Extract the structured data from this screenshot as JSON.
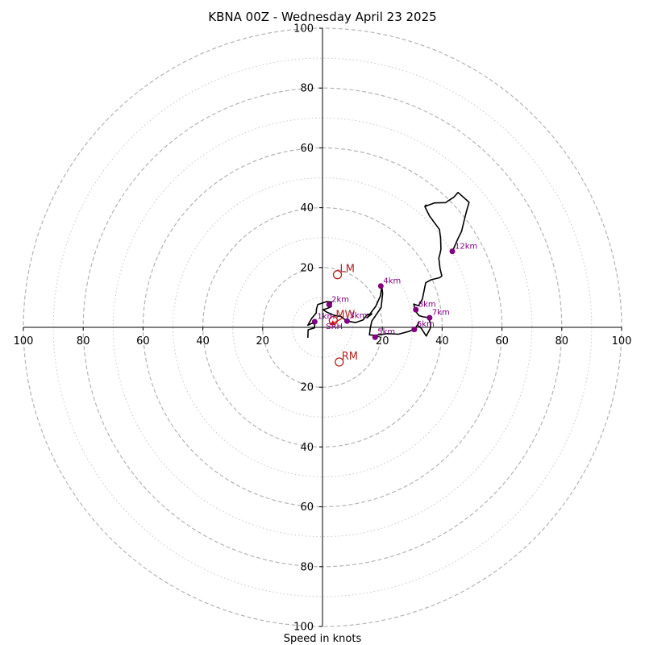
{
  "chart_data": {
    "type": "hodograph",
    "title": "KBNA 00Z - Wednesday April 23 2025",
    "xlabel": "Speed in knots",
    "range_max": 100,
    "grid": true,
    "x_tick_labels": [
      "100",
      "80",
      "60",
      "40",
      "20",
      "20",
      "40",
      "60",
      "80",
      "100"
    ],
    "x_tick_values": [
      -100,
      -80,
      -60,
      -40,
      -20,
      20,
      40,
      60,
      80,
      100
    ],
    "y_tick_labels": [
      "100",
      "80",
      "60",
      "40",
      "20",
      "20",
      "40",
      "60",
      "80",
      "100"
    ],
    "y_tick_values": [
      100,
      80,
      60,
      40,
      20,
      -20,
      -40,
      -60,
      -80,
      -100
    ],
    "rings_major": [
      20,
      40,
      60,
      80,
      100
    ],
    "rings_minor": [
      10,
      30,
      50,
      70,
      90
    ],
    "hodograph_trace": [
      [
        -4.9,
        -3.5
      ],
      [
        -4.8,
        -0.8
      ],
      [
        -2.7,
        -0.2
      ],
      [
        -2.6,
        1.0
      ],
      [
        -3.4,
        1.4
      ],
      [
        -4.9,
        0.7
      ],
      [
        -3.6,
        3.0
      ],
      [
        -2.1,
        4.8
      ],
      [
        -2.0,
        6.2
      ],
      [
        -1.6,
        7.6
      ],
      [
        1.4,
        8.6
      ],
      [
        3.0,
        8.5
      ],
      [
        2.9,
        6.9
      ],
      [
        1.5,
        6.3
      ],
      [
        0.2,
        5.9
      ],
      [
        1.4,
        5.1
      ],
      [
        4.0,
        4.0
      ],
      [
        6.2,
        3.6
      ],
      [
        8.1,
        2.1
      ],
      [
        11.0,
        1.6
      ],
      [
        13.6,
        2.5
      ],
      [
        14.3,
        3.5
      ],
      [
        15.0,
        4.3
      ],
      [
        16.5,
        4.5
      ],
      [
        14.9,
        3.2
      ],
      [
        17.8,
        7.0
      ],
      [
        19.4,
        10.6
      ],
      [
        19.8,
        13.7
      ],
      [
        20.1,
        11.3
      ],
      [
        19.6,
        6.6
      ],
      [
        16.5,
        2.1
      ],
      [
        16.0,
        -0.1
      ],
      [
        15.7,
        -2.5
      ],
      [
        17.6,
        -2.7
      ],
      [
        21.6,
        -2.1
      ],
      [
        25.4,
        -2.3
      ],
      [
        29.1,
        -1.3
      ],
      [
        30.8,
        -0.5
      ],
      [
        31.4,
        0.3
      ],
      [
        32.2,
        1.6
      ],
      [
        31.8,
        0.7
      ],
      [
        33.0,
        -0.3
      ],
      [
        34.7,
        -2.9
      ],
      [
        36.0,
        -0.4
      ],
      [
        36.2,
        1.2
      ],
      [
        35.3,
        3.3
      ],
      [
        33.7,
        3.5
      ],
      [
        32.3,
        3.9
      ],
      [
        31.0,
        5.5
      ],
      [
        30.5,
        7.8
      ],
      [
        32.1,
        7.2
      ],
      [
        33.4,
        9.5
      ],
      [
        34.5,
        14.9
      ],
      [
        36.3,
        15.9
      ],
      [
        39.2,
        16.6
      ],
      [
        39.9,
        17.2
      ],
      [
        39.3,
        19.6
      ],
      [
        38.9,
        23.1
      ],
      [
        39.3,
        24.7
      ],
      [
        39.6,
        26.1
      ],
      [
        39.5,
        29.7
      ],
      [
        39.1,
        32.7
      ],
      [
        35.8,
        37.2
      ],
      [
        34.3,
        40.2
      ],
      [
        34.6,
        40.9
      ],
      [
        34.2,
        40.4
      ],
      [
        37.4,
        41.6
      ],
      [
        41.2,
        41.7
      ],
      [
        41.9,
        42.2
      ],
      [
        43.9,
        43.5
      ],
      [
        45.3,
        45.1
      ],
      [
        49.0,
        41.8
      ],
      [
        48.1,
        38.7
      ],
      [
        47.3,
        35.5
      ],
      [
        46.5,
        32.1
      ],
      [
        45.3,
        29.7
      ],
      [
        43.2,
        24.9
      ],
      [
        43.5,
        25.5
      ],
      [
        43.1,
        25.0
      ]
    ],
    "height_points": [
      {
        "label": "1km",
        "u": -2.6,
        "v": 1.9
      },
      {
        "label": "2km",
        "u": 2.2,
        "v": 7.6
      },
      {
        "label": "3km",
        "u": 8.2,
        "v": 2.1
      },
      {
        "label": "4km",
        "u": 19.5,
        "v": 13.8
      },
      {
        "label": "5km",
        "u": 17.6,
        "v": -3.3
      },
      {
        "label": "6km",
        "u": 30.7,
        "v": -0.7
      },
      {
        "label": "7km",
        "u": 35.8,
        "v": 3.2
      },
      {
        "label": "8km",
        "u": 31.2,
        "v": 5.9
      },
      {
        "label": "12km",
        "u": 43.4,
        "v": 25.4
      }
    ],
    "storm_motion_markers": [
      {
        "label": "LM",
        "u": 5.0,
        "v": 17.6
      },
      {
        "label": "RM",
        "u": 5.6,
        "v": -11.6
      },
      {
        "label": "MW",
        "u": 3.6,
        "v": 2.3
      }
    ],
    "storm_motion_arrow": {
      "label": "SRH",
      "from": [
        6.5,
        3.0
      ],
      "to": [
        2.5,
        0.8
      ]
    }
  }
}
